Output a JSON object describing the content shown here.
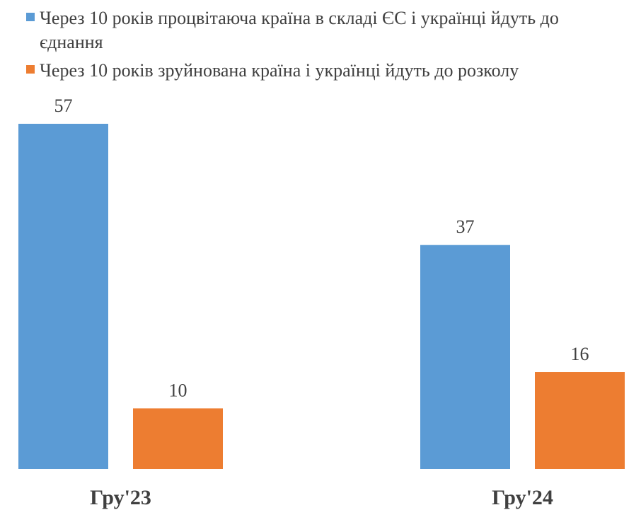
{
  "chart_data": {
    "type": "bar",
    "categories": [
      "Гру'23",
      "Гру'24"
    ],
    "series": [
      {
        "name": "Через 10 років процвітаюча країна в складі ЄС і українці йдуть до єднання",
        "values": [
          57,
          37
        ],
        "color": "#5B9BD5"
      },
      {
        "name": "Через 10 років зруйнована країна і українці йдуть до розколу",
        "values": [
          10,
          16
        ],
        "color": "#ED7D31"
      }
    ],
    "legend": {
      "position": "top-left",
      "lines": [
        [
          "Через 10 років процвітаюча країна в складі ЄС і українці йдуть до",
          "єднання"
        ],
        [
          "Через 10 років зруйнована країна і українці йдуть до розколу"
        ]
      ]
    },
    "data_labels": true,
    "grid": false,
    "y_axis_visible": false,
    "ylim": [
      0,
      57
    ],
    "title": "",
    "xlabel": "",
    "ylabel": ""
  }
}
